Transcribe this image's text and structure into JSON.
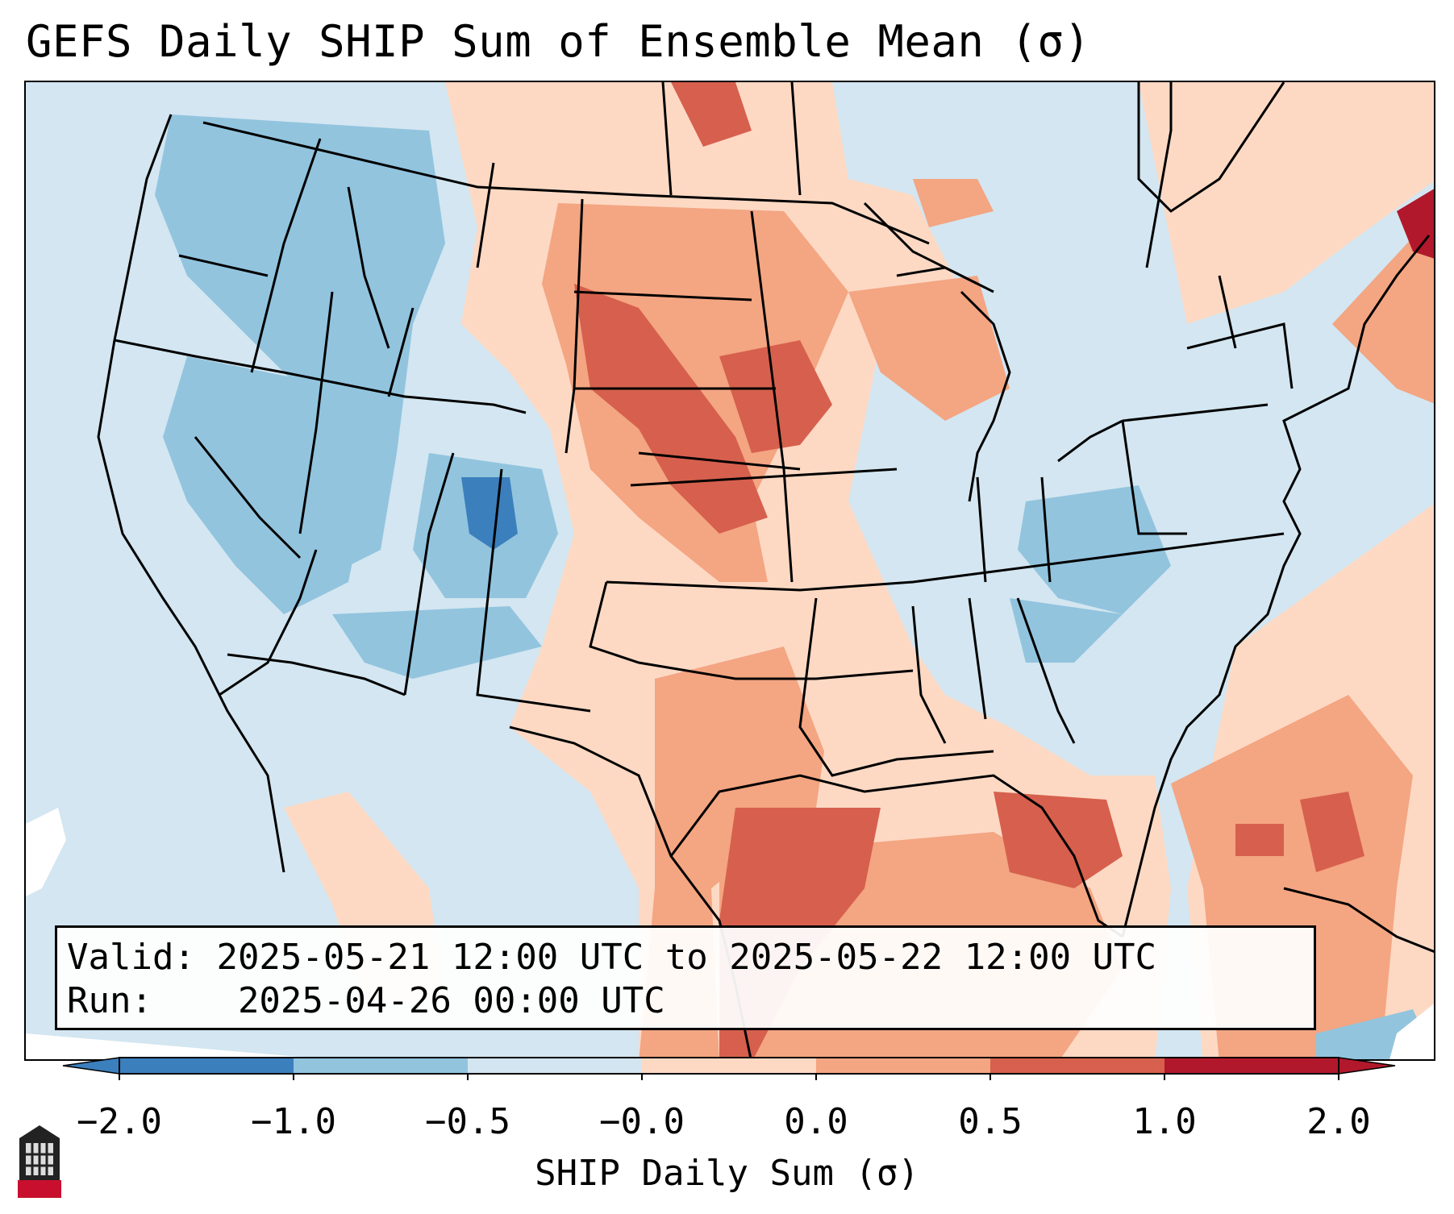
{
  "title": "GEFS Daily SHIP Sum of Ensemble Mean (σ)",
  "info": {
    "valid_label": "Valid:",
    "valid_value": "2025-05-21 12:00 UTC to 2025-05-22 12:00 UTC",
    "run_label": "Run:",
    "run_value": "2025-04-26 00:00 UTC"
  },
  "colorbar": {
    "label": "SHIP Daily Sum (σ)",
    "ticks": [
      "−2.0",
      "−1.0",
      "−0.5",
      "−0.0",
      "0.0",
      "0.5",
      "1.0",
      "2.0"
    ],
    "colors": [
      "#3b7fbd",
      "#92c4de",
      "#d2e5f0",
      "#f7f7f7",
      "#fdd9c4",
      "#f4a582",
      "#d6604d",
      "#b2182b"
    ],
    "extend": "both"
  },
  "map": {
    "region": "CONUS",
    "background_color": "#d3e6f1",
    "field_colors": {
      "strong_negative": "#3b7fbd",
      "moderate_negative": "#92c4de",
      "weak_negative": "#d2e5f0",
      "weak_positive": "#fdd9c4",
      "moderate_positive": "#f4a582",
      "strong_positive": "#d6604d",
      "extreme_positive": "#b2182b"
    }
  },
  "logo": {
    "name": "NIU"
  }
}
